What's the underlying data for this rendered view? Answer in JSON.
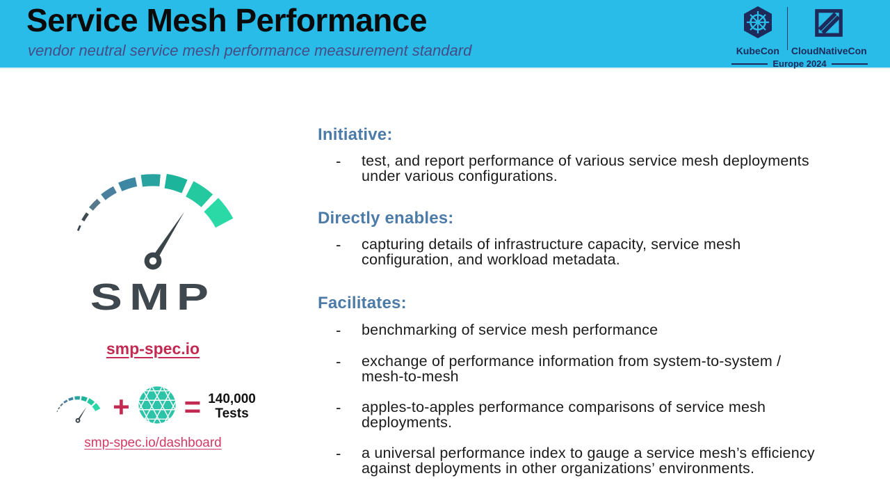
{
  "header": {
    "title": "Service Mesh Performance",
    "subtitle": "vendor neutral service mesh performance measurement standard",
    "event": {
      "kubecon": "KubeCon",
      "cloudnativecon": "CloudNativeCon",
      "edition": "Europe 2024"
    }
  },
  "left": {
    "logo_word": "SMP",
    "spec_link": "smp-spec.io",
    "equation": {
      "plus": "+",
      "equals": "=",
      "result_value": "140,000",
      "result_label": "Tests"
    },
    "dashboard_link": "smp-spec.io/dashboard"
  },
  "ui": {
    "bullet_marker": "-"
  },
  "sections": [
    {
      "heading": "Initiative:",
      "bullets": [
        "test, and report performance of various service mesh deployments under various configurations."
      ]
    },
    {
      "heading": "Directly enables:",
      "bullets": [
        "capturing details of infrastructure capacity, service mesh configuration, and workload metadata."
      ]
    },
    {
      "heading": "Facilitates:",
      "bullets": [
        "benchmarking of service mesh performance",
        "exchange of performance information from system-to-system / mesh-to-mesh",
        "apples-to-apples performance comparisons of service mesh deployments.",
        "a universal performance index to gauge a service mesh’s efficiency against deployments in other organizations’ environments."
      ]
    }
  ],
  "theme": {
    "header_bg": "#29bce9",
    "title_color": "#0a0a0a",
    "subtitle_color": "#474c85",
    "heading_color": "#4d7ba8",
    "body_text": "#1b1b1b",
    "link_color": "#c22a52",
    "dashboard_link_color": "#d13a62",
    "event_navy": "#1e2a5a",
    "smp_dark": "#3f484e",
    "mesh_teal": "#2cc3a9",
    "gauge_palette": [
      "#3a4449",
      "#3f4a51",
      "#57798c",
      "#4a7f9e",
      "#3d87a3",
      "#28a3a0",
      "#1cb59b",
      "#24c9a0",
      "#2bd9a6"
    ],
    "gauge_needle": "#3a4449"
  }
}
